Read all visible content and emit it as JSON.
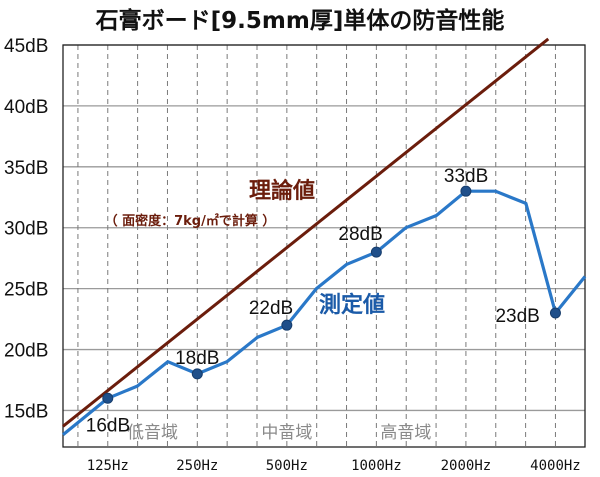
{
  "chart_data": {
    "type": "line",
    "title": "石膏ボード[9.5mm厚]単体の防音性能",
    "xlabel": "",
    "ylabel": "",
    "ylim": [
      12,
      45
    ],
    "y_ticks": [
      "15dB",
      "20dB",
      "25dB",
      "30dB",
      "35dB",
      "40dB",
      "45dB"
    ],
    "y_tick_values": [
      15,
      20,
      25,
      30,
      35,
      40,
      45
    ],
    "x_ticks": [
      "125Hz",
      "250Hz",
      "500Hz",
      "1000Hz",
      "2000Hz",
      "4000Hz"
    ],
    "x_tick_octaves": [
      0,
      1,
      2,
      3,
      4,
      5
    ],
    "xlim_octaves": [
      -0.5,
      5.33
    ],
    "bands": [
      {
        "label": "低音域",
        "center_octave": 0.5
      },
      {
        "label": "中音域",
        "center_octave": 2.0
      },
      {
        "label": "高音域",
        "center_octave": 3.33
      }
    ],
    "grid": true,
    "series": [
      {
        "name": "理論値",
        "note": "（ 面密度：7kg/㎡で計算 ）",
        "color": "#6b1d0c",
        "x_octaves": [
          -0.5,
          4.92
        ],
        "values": [
          13.7,
          45.5
        ]
      },
      {
        "name": "測定値",
        "color": "#2a78c8",
        "x_octaves": [
          -0.5,
          0,
          0.33,
          0.67,
          1,
          1.33,
          1.67,
          2,
          2.33,
          2.67,
          3,
          3.33,
          3.67,
          4,
          4.33,
          4.67,
          5,
          5.33
        ],
        "values": [
          13,
          16,
          17,
          19,
          18,
          19,
          21,
          22,
          25,
          27,
          28,
          30,
          31,
          33,
          33,
          32,
          23,
          26
        ],
        "highlights": [
          {
            "x_octave": 0,
            "value": 16,
            "label": "16dB"
          },
          {
            "x_octave": 1,
            "value": 18,
            "label": "18dB"
          },
          {
            "x_octave": 2,
            "value": 22,
            "label": "22dB"
          },
          {
            "x_octave": 3,
            "value": 28,
            "label": "28dB"
          },
          {
            "x_octave": 4,
            "value": 33,
            "label": "33dB"
          },
          {
            "x_octave": 5,
            "value": 23,
            "label": "23dB"
          }
        ]
      }
    ]
  }
}
